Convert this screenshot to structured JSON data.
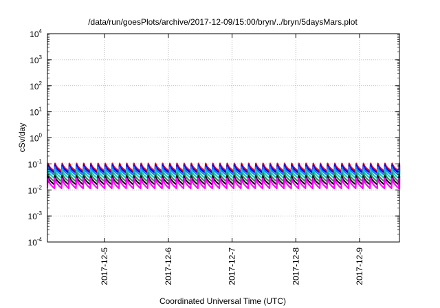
{
  "chart_data": {
    "type": "line",
    "title": "/data/run/goesPlots/archive/2017-12-09/15:00/bryn/../bryn/5daysMars.plot",
    "xlabel": "Coordinated Universal Time (UTC)",
    "ylabel": "cSv/day",
    "y_scale": "log",
    "ylim": [
      0.0001,
      10000
    ],
    "y_ticks": [
      {
        "value": 0.0001,
        "base": "10",
        "exp": "-4"
      },
      {
        "value": 0.001,
        "base": "10",
        "exp": "-3"
      },
      {
        "value": 0.01,
        "base": "10",
        "exp": "-2"
      },
      {
        "value": 0.1,
        "base": "10",
        "exp": "-1"
      },
      {
        "value": 1,
        "base": "10",
        "exp": "0"
      },
      {
        "value": 10,
        "base": "10",
        "exp": "1"
      },
      {
        "value": 100,
        "base": "10",
        "exp": "2"
      },
      {
        "value": 1000,
        "base": "10",
        "exp": "3"
      },
      {
        "value": 10000,
        "base": "10",
        "exp": "4"
      }
    ],
    "xlim": [
      "2017-12-04T02:30",
      "2017-12-09T15:00"
    ],
    "x_ticks": [
      {
        "value": "2017-12-05T00:00",
        "label": "2017-12-5"
      },
      {
        "value": "2017-12-06T00:00",
        "label": "2017-12-6"
      },
      {
        "value": "2017-12-07T00:00",
        "label": "2017-12-7"
      },
      {
        "value": "2017-12-08T00:00",
        "label": "2017-12-8"
      },
      {
        "value": "2017-12-09T00:00",
        "label": "2017-12-9"
      }
    ],
    "grid": true,
    "pattern": {
      "type": "sawtooth",
      "period_hours": 2.7,
      "note_exclude": true
    },
    "series": [
      {
        "color": "#ff0000",
        "peak": 0.105,
        "trough": 0.052
      },
      {
        "color": "#0000ff",
        "peak": 0.09,
        "trough": 0.045
      },
      {
        "color": "#1f77ff",
        "peak": 0.075,
        "trough": 0.037
      },
      {
        "color": "#00ced1",
        "peak": 0.06,
        "trough": 0.028
      },
      {
        "color": "#2e8b57",
        "peak": 0.045,
        "trough": 0.021
      },
      {
        "color": "#000000",
        "peak": 0.034,
        "trough": 0.016
      },
      {
        "color": "#ff00ff",
        "peak": 0.028,
        "trough": 0.0115
      }
    ]
  }
}
